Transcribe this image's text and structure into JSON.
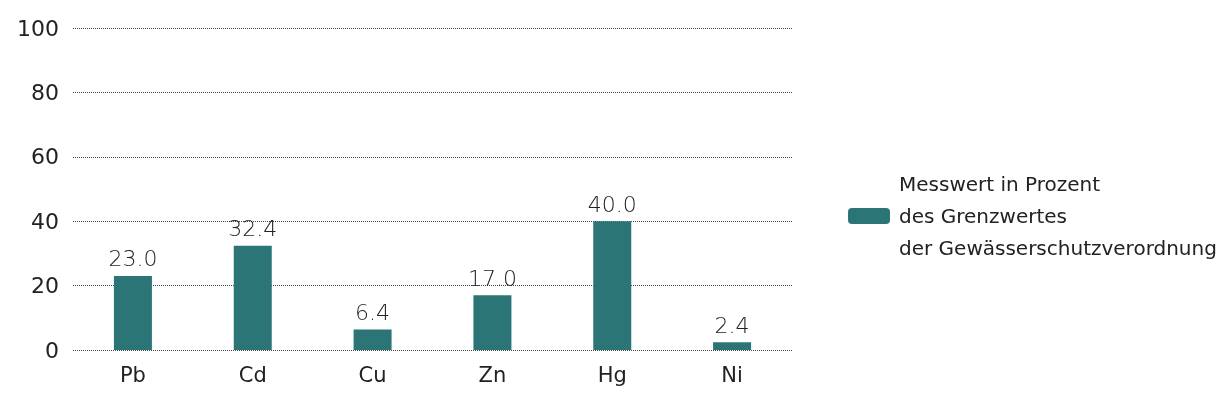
{
  "chart_data": {
    "type": "bar",
    "categories": [
      "Pb",
      "Cd",
      "Cu",
      "Zn",
      "Hg",
      "Ni"
    ],
    "series": [
      {
        "name": "Messwert in Prozent\ndes Grenzwertes\nder Gewässerschutzverordnung",
        "color": "#2b7576",
        "values": [
          23.0,
          32.4,
          6.4,
          17.0,
          40.0,
          2.4
        ],
        "value_labels": [
          "23.0",
          "32.4",
          "6.4",
          "17.0",
          "40.0",
          "2.4"
        ]
      }
    ],
    "ylim": [
      0,
      100
    ],
    "yticks": [
      0,
      20,
      40,
      60,
      80,
      100
    ],
    "grid": "y",
    "legend": "right"
  }
}
